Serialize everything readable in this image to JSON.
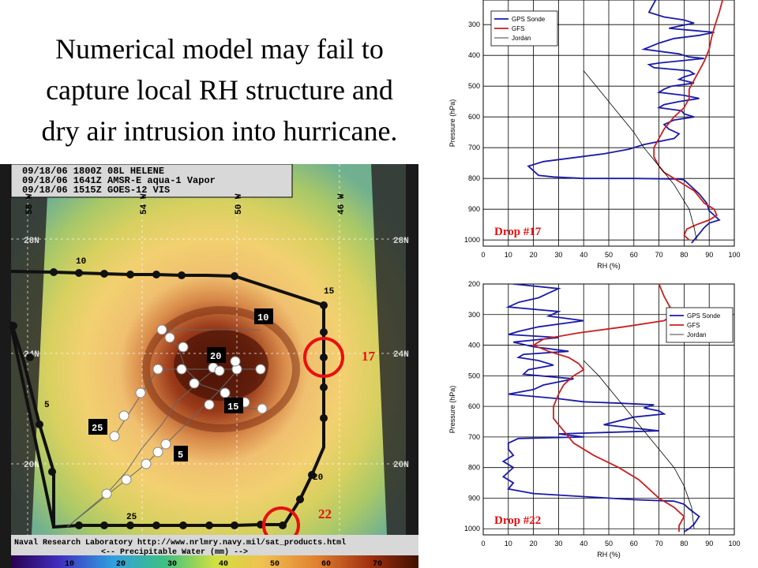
{
  "title_lines": [
    "Numerical model may fail to",
    "capture local RH structure and",
    "dry air intrusion into hurricane."
  ],
  "satellite": {
    "header_lines": [
      "09/18/06 1800Z  08L HELENE",
      "09/18/06 1641Z  AMSR-E aqua-1 Vapor",
      "09/18/06 1515Z  GOES-12 VIS"
    ],
    "longitudes": [
      "58 W",
      "54 W",
      "50 W",
      "46 W"
    ],
    "latitudes": [
      "28N",
      "24N",
      "20N"
    ],
    "flight_time_labels": [
      "10",
      "15",
      "20",
      "25",
      "5"
    ],
    "pattern_labels": [
      "10",
      "20",
      "15",
      "25",
      "5"
    ],
    "footer_lines": [
      "Naval Research Laboratory  http://www.nrlmry.navy.mil/sat_products.html",
      "<--  Precipitable Water (mm)  -->"
    ],
    "colorbar_ticks": [
      "10",
      "20",
      "30",
      "40",
      "50",
      "60",
      "70"
    ]
  },
  "drop_markers": [
    "17",
    "22"
  ],
  "chart_data": [
    {
      "type": "line",
      "panel_label": "Drop #17",
      "xlabel": "RH (%)",
      "ylabel": "Pressure (hPa)",
      "xlim": [
        0,
        100
      ],
      "ylim": [
        1020,
        200
      ],
      "x_ticks": [
        0,
        10,
        20,
        30,
        40,
        50,
        60,
        70,
        80,
        90,
        100
      ],
      "y_ticks": [
        300,
        400,
        500,
        600,
        700,
        800,
        900,
        1000
      ],
      "legend_position": "top-left",
      "series": [
        {
          "name": "GPS Sonde",
          "color": "#1a1aa8",
          "x": [
            70,
            68,
            66,
            72,
            80,
            84,
            78,
            74,
            82,
            92,
            86,
            76,
            70,
            64,
            78,
            82,
            88,
            70,
            66,
            68,
            82,
            84,
            80,
            78,
            84,
            75,
            72,
            70,
            80,
            86,
            78,
            72,
            70,
            79,
            80,
            84,
            76,
            72,
            74,
            78,
            76,
            64,
            58,
            48,
            24,
            18,
            20,
            22,
            28,
            40,
            60,
            78,
            80,
            82,
            86,
            89,
            90,
            92,
            94,
            90,
            88,
            86,
            84,
            83
          ],
          "y": [
            200,
            230,
            260,
            275,
            285,
            295,
            305,
            312,
            318,
            325,
            335,
            345,
            360,
            380,
            395,
            405,
            410,
            425,
            430,
            440,
            450,
            460,
            470,
            478,
            490,
            500,
            510,
            520,
            530,
            540,
            550,
            560,
            570,
            580,
            590,
            600,
            610,
            625,
            640,
            655,
            670,
            690,
            705,
            720,
            745,
            760,
            775,
            790,
            795,
            800,
            800,
            802,
            805,
            820,
            850,
            880,
            905,
            920,
            935,
            945,
            960,
            980,
            1000,
            1010
          ]
        },
        {
          "name": "GFS",
          "color": "#c82020",
          "x": [
            96,
            95,
            94,
            93,
            92,
            91,
            90,
            88,
            86,
            84,
            82,
            82,
            80,
            76,
            72,
            70,
            68,
            68,
            70,
            72,
            76,
            80,
            84,
            86,
            88,
            92,
            93,
            90,
            85,
            81,
            80,
            82
          ],
          "y": [
            200,
            230,
            260,
            285,
            310,
            340,
            380,
            420,
            450,
            480,
            510,
            540,
            570,
            600,
            640,
            670,
            700,
            730,
            760,
            780,
            800,
            820,
            840,
            860,
            880,
            900,
            920,
            935,
            950,
            965,
            985,
            1000
          ]
        },
        {
          "name": "Jordan",
          "color": "#000000",
          "x": [
            40,
            45,
            50,
            55,
            60,
            64,
            68,
            72,
            76,
            79,
            82,
            84,
            85
          ],
          "y": [
            450,
            500,
            550,
            600,
            650,
            700,
            740,
            780,
            820,
            860,
            900,
            960,
            1000
          ]
        }
      ]
    },
    {
      "type": "line",
      "panel_label": "Drop #22",
      "xlabel": "RH (%)",
      "ylabel": "Pressure (hPa)",
      "xlim": [
        0,
        100
      ],
      "ylim": [
        1020,
        200
      ],
      "x_ticks": [
        0,
        10,
        20,
        30,
        40,
        50,
        60,
        70,
        80,
        90,
        100
      ],
      "y_ticks": [
        200,
        300,
        400,
        500,
        600,
        700,
        800,
        900,
        1000
      ],
      "legend_position": "top-right",
      "series": [
        {
          "name": "GPS Sonde",
          "color": "#1a1aa8",
          "x": [
            12,
            30,
            26,
            22,
            14,
            10,
            30,
            26,
            40,
            22,
            14,
            10,
            30,
            12,
            20,
            34,
            16,
            14,
            22,
            28,
            18,
            16,
            36,
            24,
            20,
            10,
            30,
            40,
            55,
            68,
            64,
            70,
            72,
            60,
            48,
            70,
            30,
            40,
            14,
            10,
            10,
            12,
            8,
            12,
            10,
            8,
            12,
            10,
            20,
            40,
            60,
            76,
            80,
            82,
            86,
            84,
            82,
            80
          ],
          "y": [
            200,
            215,
            230,
            245,
            260,
            275,
            290,
            305,
            320,
            340,
            355,
            365,
            375,
            390,
            405,
            420,
            430,
            440,
            450,
            465,
            480,
            495,
            510,
            530,
            545,
            560,
            575,
            585,
            590,
            595,
            605,
            615,
            625,
            635,
            660,
            680,
            690,
            700,
            705,
            720,
            740,
            760,
            780,
            800,
            815,
            830,
            850,
            870,
            885,
            895,
            905,
            910,
            920,
            935,
            960,
            985,
            1000,
            1010
          ]
        },
        {
          "name": "GFS",
          "color": "#c82020",
          "x": [
            70,
            72,
            74,
            76,
            72,
            56,
            38,
            24,
            20,
            26,
            34,
            38,
            40,
            36,
            32,
            30,
            28,
            28,
            32,
            36,
            44,
            54,
            62,
            66,
            70,
            76,
            80,
            78,
            78
          ],
          "y": [
            200,
            240,
            270,
            300,
            320,
            340,
            360,
            380,
            400,
            420,
            440,
            460,
            480,
            500,
            530,
            560,
            600,
            640,
            680,
            720,
            760,
            800,
            840,
            870,
            900,
            930,
            960,
            990,
            1010
          ]
        },
        {
          "name": "Jordan",
          "color": "#000000",
          "x": [
            40,
            46,
            52,
            58,
            64,
            70,
            76,
            80,
            83,
            84
          ],
          "y": [
            450,
            500,
            560,
            620,
            680,
            740,
            800,
            860,
            930,
            1000
          ]
        }
      ]
    }
  ]
}
